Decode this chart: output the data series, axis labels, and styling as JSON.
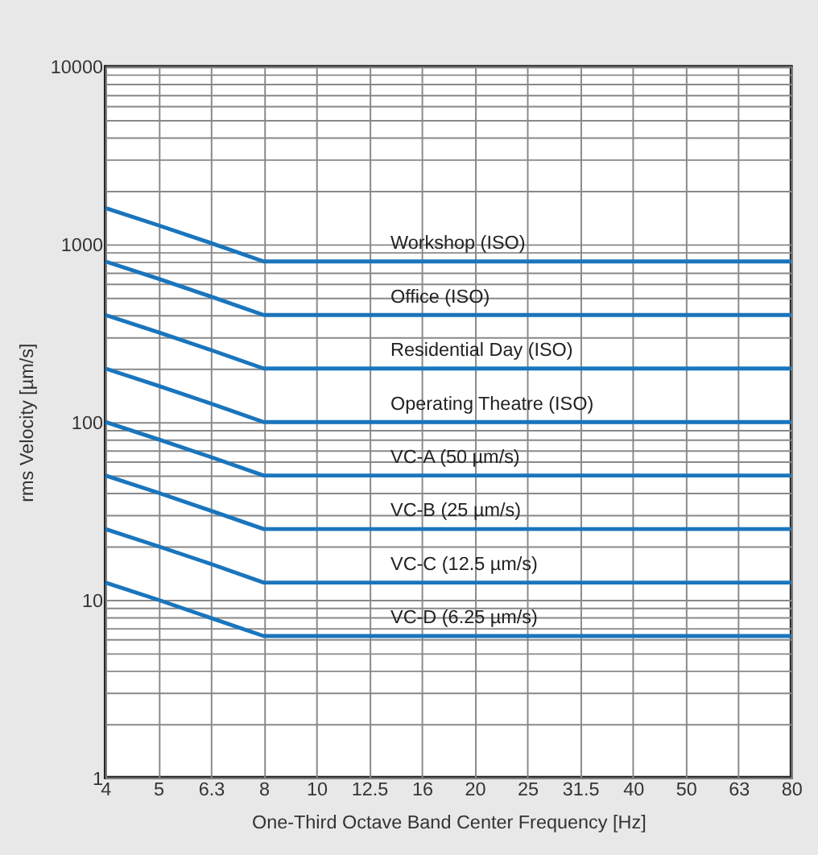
{
  "chart_data": {
    "type": "line",
    "xlabel": "One-Third Octave Band Center Frequency [Hz]",
    "ylabel": "rms Velocity [µm/s]",
    "categories": [
      "4",
      "5",
      "6.3",
      "8",
      "10",
      "12.5",
      "16",
      "20",
      "25",
      "31.5",
      "40",
      "50",
      "63",
      "80"
    ],
    "series": [
      {
        "name": "Workshop (ISO)",
        "color": "#1a75bc",
        "values": [
          1600,
          1280,
          1016,
          800,
          800,
          800,
          800,
          800,
          800,
          800,
          800,
          800,
          800,
          800
        ]
      },
      {
        "name": "Office (ISO)",
        "color": "#1a75bc",
        "values": [
          800,
          640,
          508,
          400,
          400,
          400,
          400,
          400,
          400,
          400,
          400,
          400,
          400,
          400
        ]
      },
      {
        "name": "Residential Day (ISO)",
        "color": "#1a75bc",
        "values": [
          400,
          320,
          254,
          200,
          200,
          200,
          200,
          200,
          200,
          200,
          200,
          200,
          200,
          200
        ]
      },
      {
        "name": "Operating Theatre (ISO)",
        "color": "#1a75bc",
        "values": [
          200,
          160,
          127,
          100,
          100,
          100,
          100,
          100,
          100,
          100,
          100,
          100,
          100,
          100
        ]
      },
      {
        "name": "VC-A (50 µm/s)",
        "color": "#1a75bc",
        "values": [
          100,
          80,
          63.5,
          50,
          50,
          50,
          50,
          50,
          50,
          50,
          50,
          50,
          50,
          50
        ]
      },
      {
        "name": "VC-B (25 µm/s)",
        "color": "#1a75bc",
        "values": [
          50,
          40,
          31.7,
          25,
          25,
          25,
          25,
          25,
          25,
          25,
          25,
          25,
          25,
          25
        ]
      },
      {
        "name": "VC-C (12.5 µm/s)",
        "color": "#1a75bc",
        "values": [
          25,
          20,
          15.9,
          12.5,
          12.5,
          12.5,
          12.5,
          12.5,
          12.5,
          12.5,
          12.5,
          12.5,
          12.5,
          12.5
        ]
      },
      {
        "name": "VC-D (6.25 µm/s)",
        "color": "#1a75bc",
        "values": [
          12.5,
          10,
          7.9,
          6.25,
          6.25,
          6.25,
          6.25,
          6.25,
          6.25,
          6.25,
          6.25,
          6.25,
          6.25,
          6.25
        ]
      }
    ],
    "ylim": [
      1,
      10000
    ],
    "log": "y",
    "grid": true,
    "marker": "none",
    "line_style": "solid",
    "yticks": [
      1,
      {
        "value": 2,
        "label": null
      },
      {
        "value": 3,
        "label": null
      },
      {
        "value": 4,
        "label": null
      },
      {
        "value": 5,
        "label": null
      },
      {
        "value": 6,
        "label": null
      },
      {
        "value": 7,
        "label": null
      },
      {
        "value": 8,
        "label": null
      },
      {
        "value": 9,
        "label": null
      },
      10,
      {
        "value": 20,
        "label": null
      },
      {
        "value": 30,
        "label": null
      },
      {
        "value": 40,
        "label": null
      },
      {
        "value": 50,
        "label": null
      },
      {
        "value": 60,
        "label": null
      },
      {
        "value": 70,
        "label": null
      },
      {
        "value": 80,
        "label": null
      },
      {
        "value": 90,
        "label": null
      },
      100,
      {
        "value": 200,
        "label": null
      },
      {
        "value": 300,
        "label": null
      },
      {
        "value": 400,
        "label": null
      },
      {
        "value": 500,
        "label": null
      },
      {
        "value": 600,
        "label": null
      },
      {
        "value": 700,
        "label": null
      },
      {
        "value": 800,
        "label": null
      },
      {
        "value": 900,
        "label": null
      },
      1000,
      {
        "value": 2000,
        "label": null
      },
      {
        "value": 3000,
        "label": null
      },
      {
        "value": 4000,
        "label": null
      },
      {
        "value": 5000,
        "label": null
      },
      {
        "value": 6000,
        "label": null
      },
      {
        "value": 7000,
        "label": null
      },
      {
        "value": 8000,
        "label": null
      },
      {
        "value": 9000,
        "label": null
      },
      10000
    ]
  }
}
